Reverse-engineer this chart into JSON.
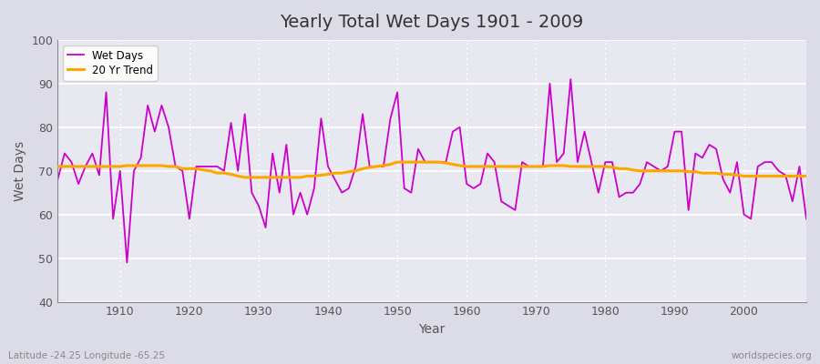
{
  "title": "Yearly Total Wet Days 1901 - 2009",
  "xlabel": "Year",
  "ylabel": "Wet Days",
  "footnote_left": "Latitude -24.25 Longitude -65.25",
  "footnote_right": "worldspecies.org",
  "ylim": [
    40,
    100
  ],
  "xlim": [
    1901,
    2009
  ],
  "fig_bg_color": "#dcdce8",
  "plot_bg_color": "#e8e8f0",
  "grid_color": "#ffffff",
  "wet_days_color": "#cc00cc",
  "trend_color": "#ffa500",
  "wet_days": [
    68,
    74,
    72,
    67,
    71,
    74,
    69,
    88,
    59,
    70,
    49,
    70,
    73,
    85,
    79,
    85,
    80,
    71,
    70,
    59,
    71,
    71,
    71,
    71,
    70,
    81,
    70,
    83,
    65,
    62,
    57,
    74,
    65,
    76,
    60,
    65,
    60,
    66,
    82,
    71,
    68,
    65,
    66,
    71,
    83,
    71,
    71,
    71,
    82,
    88,
    66,
    65,
    75,
    72,
    72,
    72,
    72,
    79,
    80,
    67,
    66,
    67,
    74,
    72,
    63,
    62,
    61,
    72,
    71,
    71,
    71,
    90,
    72,
    74,
    91,
    72,
    79,
    72,
    65,
    72,
    72,
    64,
    65,
    65,
    67,
    72,
    71,
    70,
    71,
    79,
    79,
    61,
    74,
    73,
    76,
    75,
    68,
    65,
    72,
    60,
    59,
    71,
    72,
    72,
    70,
    69,
    63,
    71,
    59
  ],
  "trend": [
    71.0,
    71.0,
    71.0,
    71.0,
    71.0,
    71.0,
    71.0,
    71.0,
    71.0,
    71.0,
    71.2,
    71.2,
    71.2,
    71.2,
    71.2,
    71.2,
    71.0,
    71.0,
    70.5,
    70.5,
    70.5,
    70.2,
    70.0,
    69.5,
    69.5,
    69.2,
    68.8,
    68.5,
    68.5,
    68.5,
    68.5,
    68.5,
    68.5,
    68.5,
    68.5,
    68.5,
    68.8,
    68.8,
    69.0,
    69.2,
    69.5,
    69.5,
    69.8,
    70.0,
    70.5,
    70.8,
    71.0,
    71.2,
    71.5,
    72.0,
    72.0,
    72.0,
    72.0,
    72.0,
    72.0,
    72.0,
    71.8,
    71.5,
    71.2,
    71.0,
    71.0,
    71.0,
    71.0,
    71.0,
    71.0,
    71.0,
    71.0,
    71.0,
    71.0,
    71.0,
    71.0,
    71.2,
    71.2,
    71.2,
    71.0,
    71.0,
    71.0,
    71.0,
    71.0,
    71.0,
    70.8,
    70.5,
    70.5,
    70.2,
    70.0,
    70.0,
    70.0,
    70.0,
    70.0,
    70.0,
    70.0,
    69.8,
    69.8,
    69.5,
    69.5,
    69.5,
    69.2,
    69.2,
    69.0,
    68.8,
    68.8,
    68.8,
    68.8,
    68.8,
    68.8,
    68.8,
    68.8,
    68.8,
    68.8
  ]
}
